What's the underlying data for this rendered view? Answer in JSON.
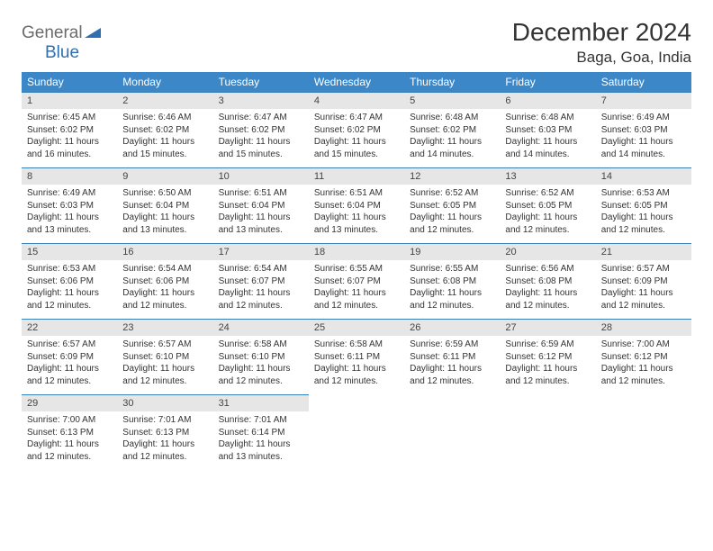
{
  "header": {
    "logo_word1": "General",
    "logo_word2": "Blue",
    "month_title": "December 2024",
    "location": "Baga, Goa, India"
  },
  "colors": {
    "header_bg": "#3b87c8",
    "header_text": "#ffffff",
    "daynum_bg": "#e6e6e6",
    "daynum_border": "#3b7fb5",
    "body_text": "#333333",
    "logo_gray": "#6b6b6b",
    "logo_blue": "#2f6fb0",
    "page_bg": "#ffffff"
  },
  "typography": {
    "title_fontsize": 28,
    "location_fontsize": 17,
    "dayheader_fontsize": 12,
    "daynum_fontsize": 11,
    "cell_fontsize": 10,
    "logo_fontsize": 19
  },
  "calendar": {
    "day_labels": [
      "Sunday",
      "Monday",
      "Tuesday",
      "Wednesday",
      "Thursday",
      "Friday",
      "Saturday"
    ],
    "weeks": [
      [
        {
          "n": "1",
          "sunrise": "Sunrise: 6:45 AM",
          "sunset": "Sunset: 6:02 PM",
          "daylight": "Daylight: 11 hours and 16 minutes."
        },
        {
          "n": "2",
          "sunrise": "Sunrise: 6:46 AM",
          "sunset": "Sunset: 6:02 PM",
          "daylight": "Daylight: 11 hours and 15 minutes."
        },
        {
          "n": "3",
          "sunrise": "Sunrise: 6:47 AM",
          "sunset": "Sunset: 6:02 PM",
          "daylight": "Daylight: 11 hours and 15 minutes."
        },
        {
          "n": "4",
          "sunrise": "Sunrise: 6:47 AM",
          "sunset": "Sunset: 6:02 PM",
          "daylight": "Daylight: 11 hours and 15 minutes."
        },
        {
          "n": "5",
          "sunrise": "Sunrise: 6:48 AM",
          "sunset": "Sunset: 6:02 PM",
          "daylight": "Daylight: 11 hours and 14 minutes."
        },
        {
          "n": "6",
          "sunrise": "Sunrise: 6:48 AM",
          "sunset": "Sunset: 6:03 PM",
          "daylight": "Daylight: 11 hours and 14 minutes."
        },
        {
          "n": "7",
          "sunrise": "Sunrise: 6:49 AM",
          "sunset": "Sunset: 6:03 PM",
          "daylight": "Daylight: 11 hours and 14 minutes."
        }
      ],
      [
        {
          "n": "8",
          "sunrise": "Sunrise: 6:49 AM",
          "sunset": "Sunset: 6:03 PM",
          "daylight": "Daylight: 11 hours and 13 minutes."
        },
        {
          "n": "9",
          "sunrise": "Sunrise: 6:50 AM",
          "sunset": "Sunset: 6:04 PM",
          "daylight": "Daylight: 11 hours and 13 minutes."
        },
        {
          "n": "10",
          "sunrise": "Sunrise: 6:51 AM",
          "sunset": "Sunset: 6:04 PM",
          "daylight": "Daylight: 11 hours and 13 minutes."
        },
        {
          "n": "11",
          "sunrise": "Sunrise: 6:51 AM",
          "sunset": "Sunset: 6:04 PM",
          "daylight": "Daylight: 11 hours and 13 minutes."
        },
        {
          "n": "12",
          "sunrise": "Sunrise: 6:52 AM",
          "sunset": "Sunset: 6:05 PM",
          "daylight": "Daylight: 11 hours and 12 minutes."
        },
        {
          "n": "13",
          "sunrise": "Sunrise: 6:52 AM",
          "sunset": "Sunset: 6:05 PM",
          "daylight": "Daylight: 11 hours and 12 minutes."
        },
        {
          "n": "14",
          "sunrise": "Sunrise: 6:53 AM",
          "sunset": "Sunset: 6:05 PM",
          "daylight": "Daylight: 11 hours and 12 minutes."
        }
      ],
      [
        {
          "n": "15",
          "sunrise": "Sunrise: 6:53 AM",
          "sunset": "Sunset: 6:06 PM",
          "daylight": "Daylight: 11 hours and 12 minutes."
        },
        {
          "n": "16",
          "sunrise": "Sunrise: 6:54 AM",
          "sunset": "Sunset: 6:06 PM",
          "daylight": "Daylight: 11 hours and 12 minutes."
        },
        {
          "n": "17",
          "sunrise": "Sunrise: 6:54 AM",
          "sunset": "Sunset: 6:07 PM",
          "daylight": "Daylight: 11 hours and 12 minutes."
        },
        {
          "n": "18",
          "sunrise": "Sunrise: 6:55 AM",
          "sunset": "Sunset: 6:07 PM",
          "daylight": "Daylight: 11 hours and 12 minutes."
        },
        {
          "n": "19",
          "sunrise": "Sunrise: 6:55 AM",
          "sunset": "Sunset: 6:08 PM",
          "daylight": "Daylight: 11 hours and 12 minutes."
        },
        {
          "n": "20",
          "sunrise": "Sunrise: 6:56 AM",
          "sunset": "Sunset: 6:08 PM",
          "daylight": "Daylight: 11 hours and 12 minutes."
        },
        {
          "n": "21",
          "sunrise": "Sunrise: 6:57 AM",
          "sunset": "Sunset: 6:09 PM",
          "daylight": "Daylight: 11 hours and 12 minutes."
        }
      ],
      [
        {
          "n": "22",
          "sunrise": "Sunrise: 6:57 AM",
          "sunset": "Sunset: 6:09 PM",
          "daylight": "Daylight: 11 hours and 12 minutes."
        },
        {
          "n": "23",
          "sunrise": "Sunrise: 6:57 AM",
          "sunset": "Sunset: 6:10 PM",
          "daylight": "Daylight: 11 hours and 12 minutes."
        },
        {
          "n": "24",
          "sunrise": "Sunrise: 6:58 AM",
          "sunset": "Sunset: 6:10 PM",
          "daylight": "Daylight: 11 hours and 12 minutes."
        },
        {
          "n": "25",
          "sunrise": "Sunrise: 6:58 AM",
          "sunset": "Sunset: 6:11 PM",
          "daylight": "Daylight: 11 hours and 12 minutes."
        },
        {
          "n": "26",
          "sunrise": "Sunrise: 6:59 AM",
          "sunset": "Sunset: 6:11 PM",
          "daylight": "Daylight: 11 hours and 12 minutes."
        },
        {
          "n": "27",
          "sunrise": "Sunrise: 6:59 AM",
          "sunset": "Sunset: 6:12 PM",
          "daylight": "Daylight: 11 hours and 12 minutes."
        },
        {
          "n": "28",
          "sunrise": "Sunrise: 7:00 AM",
          "sunset": "Sunset: 6:12 PM",
          "daylight": "Daylight: 11 hours and 12 minutes."
        }
      ],
      [
        {
          "n": "29",
          "sunrise": "Sunrise: 7:00 AM",
          "sunset": "Sunset: 6:13 PM",
          "daylight": "Daylight: 11 hours and 12 minutes."
        },
        {
          "n": "30",
          "sunrise": "Sunrise: 7:01 AM",
          "sunset": "Sunset: 6:13 PM",
          "daylight": "Daylight: 11 hours and 12 minutes."
        },
        {
          "n": "31",
          "sunrise": "Sunrise: 7:01 AM",
          "sunset": "Sunset: 6:14 PM",
          "daylight": "Daylight: 11 hours and 13 minutes."
        },
        {
          "n": "",
          "sunrise": "",
          "sunset": "",
          "daylight": "",
          "empty": true
        },
        {
          "n": "",
          "sunrise": "",
          "sunset": "",
          "daylight": "",
          "empty": true
        },
        {
          "n": "",
          "sunrise": "",
          "sunset": "",
          "daylight": "",
          "empty": true
        },
        {
          "n": "",
          "sunrise": "",
          "sunset": "",
          "daylight": "",
          "empty": true
        }
      ]
    ]
  }
}
